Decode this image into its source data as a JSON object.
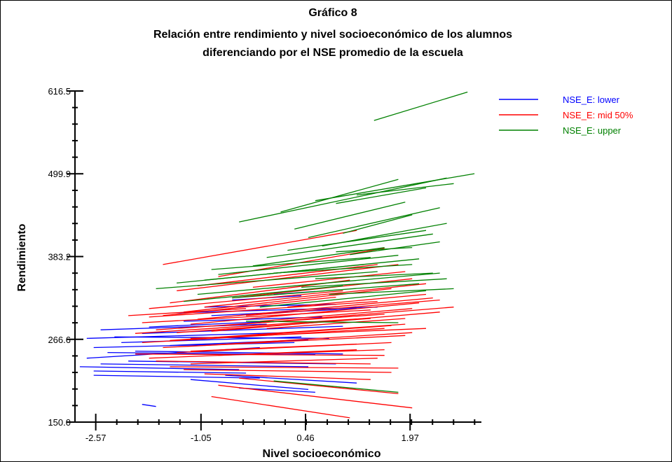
{
  "chart_data": {
    "type": "line",
    "title": "Gráfico 8",
    "subtitle_lines": [
      "Relación entre rendimiento y nivel socioeconómico de los alumnos",
      "diferenciando por el  NSE promedio de la escuela"
    ],
    "xlabel": "Nivel socioeconómico",
    "ylabel": "Rendimiento",
    "xlim": [
      -2.87,
      3.0
    ],
    "ylim": [
      150.0,
      616.5
    ],
    "xticks": [
      -2.57,
      -1.05,
      0.46,
      1.97
    ],
    "xtick_labels": [
      "-2.57",
      "-1.05",
      "0.46",
      "1.97"
    ],
    "yticks": [
      150.0,
      266.6,
      383.2,
      499.9,
      616.5
    ],
    "ytick_labels": [
      "150.0",
      "266.6",
      "383.2",
      "499.9",
      "616.5"
    ],
    "legend_position": "top-right",
    "grid": false,
    "series": [
      {
        "name": "NSE_E: lower",
        "color": "#0000ff",
        "segments": [
          [
            -2.6,
            255,
            0.3,
            262
          ],
          [
            -2.7,
            240,
            -0.2,
            255
          ],
          [
            -2.5,
            232,
            0.5,
            228
          ],
          [
            -2.8,
            228,
            -0.5,
            224
          ],
          [
            -2.3,
            270,
            0.8,
            268
          ],
          [
            -2.6,
            222,
            -0.4,
            219
          ],
          [
            -2.2,
            262,
            0.4,
            270
          ],
          [
            -2.4,
            248,
            0.6,
            245
          ],
          [
            -2.5,
            280,
            -0.1,
            288
          ],
          [
            -2.7,
            268,
            0.2,
            276
          ],
          [
            -2.1,
            236,
            0.9,
            232
          ],
          [
            -1.9,
            275,
            1.0,
            285
          ],
          [
            -1.3,
            292,
            0.7,
            298
          ],
          [
            -0.9,
            300,
            1.2,
            310
          ],
          [
            -1.8,
            284,
            0.0,
            292
          ],
          [
            -2.6,
            216,
            -0.2,
            212
          ],
          [
            -1.2,
            210,
            0.5,
            196
          ],
          [
            -0.5,
            198,
            0.6,
            192
          ],
          [
            -1.0,
            312,
            0.9,
            316
          ],
          [
            -1.5,
            258,
            0.5,
            266
          ],
          [
            -0.6,
            322,
            0.4,
            328
          ],
          [
            -1.9,
            175,
            -1.7,
            172
          ],
          [
            -0.7,
            216,
            1.2,
            205
          ],
          [
            -1.4,
            304,
            1.5,
            312
          ],
          [
            0.0,
            330,
            0.6,
            334
          ],
          [
            -2.0,
            250,
            1.0,
            246
          ]
        ]
      },
      {
        "name": "NSE_E: mid 50%",
        "color": "#ff0000",
        "segments": [
          [
            -1.6,
            372,
            1.2,
            420
          ],
          [
            -1.0,
            312,
            2.2,
            345
          ],
          [
            -0.8,
            355,
            1.6,
            395
          ],
          [
            -1.4,
            335,
            1.8,
            372
          ],
          [
            -1.2,
            288,
            2.1,
            318
          ],
          [
            -1.8,
            298,
            1.5,
            320
          ],
          [
            -1.5,
            265,
            1.9,
            288
          ],
          [
            -1.7,
            280,
            1.6,
            302
          ],
          [
            -0.9,
            278,
            2.4,
            305
          ],
          [
            -1.3,
            305,
            1.7,
            338
          ],
          [
            -0.6,
            325,
            2.0,
            352
          ],
          [
            -1.1,
            295,
            2.3,
            325
          ],
          [
            -1.9,
            290,
            1.4,
            308
          ],
          [
            -2.0,
            275,
            1.3,
            296
          ],
          [
            -1.6,
            255,
            1.9,
            272
          ],
          [
            -1.4,
            248,
            1.7,
            262
          ],
          [
            -1.8,
            240,
            1.2,
            252
          ],
          [
            -1.2,
            232,
            1.5,
            240
          ],
          [
            -1.5,
            228,
            1.8,
            226
          ],
          [
            -2.0,
            246,
            1.6,
            244
          ],
          [
            -1.7,
            236,
            1.4,
            232
          ],
          [
            -1.0,
            218,
            1.4,
            210
          ],
          [
            -1.3,
            224,
            1.7,
            220
          ],
          [
            -0.8,
            202,
            2.0,
            170
          ],
          [
            -0.9,
            186,
            1.1,
            156
          ],
          [
            -0.5,
            212,
            1.8,
            190
          ],
          [
            -1.2,
            268,
            2.2,
            282
          ],
          [
            -0.7,
            286,
            2.6,
            312
          ],
          [
            -1.8,
            310,
            1.0,
            335
          ],
          [
            -0.3,
            340,
            1.9,
            362
          ],
          [
            -1.1,
            342,
            1.5,
            372
          ],
          [
            -1.9,
            262,
            1.6,
            282
          ],
          [
            -1.0,
            258,
            2.0,
            276
          ],
          [
            -0.4,
            300,
            2.4,
            322
          ],
          [
            -1.5,
            318,
            1.1,
            350
          ],
          [
            -2.1,
            300,
            -0.4,
            310
          ],
          [
            -1.4,
            276,
            1.4,
            296
          ],
          [
            -0.2,
            292,
            2.0,
            310
          ],
          [
            -1.6,
            300,
            0.9,
            326
          ],
          [
            -0.6,
            270,
            1.7,
            286
          ],
          [
            -1.2,
            250,
            1.2,
            260
          ],
          [
            -0.8,
            244,
            1.6,
            252
          ],
          [
            -0.1,
            282,
            1.9,
            296
          ],
          [
            0.2,
            312,
            2.2,
            330
          ]
        ]
      },
      {
        "name": "NSE_E: upper",
        "color": "#008000",
        "segments": [
          [
            1.45,
            575,
            2.8,
            615
          ],
          [
            -0.5,
            432,
            2.5,
            494
          ],
          [
            0.1,
            446,
            1.8,
            492
          ],
          [
            0.6,
            462,
            2.9,
            500
          ],
          [
            0.9,
            458,
            2.2,
            480
          ],
          [
            1.2,
            470,
            2.6,
            486
          ],
          [
            0.3,
            422,
            1.9,
            460
          ],
          [
            0.5,
            410,
            2.4,
            452
          ],
          [
            0.7,
            398,
            2.5,
            430
          ],
          [
            1.0,
            416,
            2.0,
            442
          ],
          [
            0.2,
            392,
            2.2,
            420
          ],
          [
            -0.1,
            382,
            2.3,
            415
          ],
          [
            -0.3,
            370,
            1.6,
            396
          ],
          [
            -0.8,
            358,
            1.8,
            385
          ],
          [
            -1.0,
            350,
            1.3,
            372
          ],
          [
            -1.4,
            346,
            2.1,
            380
          ],
          [
            -1.7,
            338,
            1.5,
            362
          ],
          [
            -1.1,
            330,
            2.4,
            360
          ],
          [
            0.0,
            360,
            2.0,
            372
          ],
          [
            -0.6,
            325,
            2.1,
            345
          ],
          [
            0.4,
            340,
            2.5,
            352
          ],
          [
            -0.2,
            312,
            2.2,
            335
          ],
          [
            0.8,
            330,
            2.6,
            338
          ],
          [
            -1.3,
            320,
            1.0,
            342
          ],
          [
            1.1,
            386,
            2.4,
            404
          ],
          [
            -0.9,
            365,
            1.4,
            382
          ],
          [
            0.6,
            352,
            2.3,
            360
          ],
          [
            -0.4,
            292,
            1.8,
            290
          ],
          [
            0.0,
            208,
            1.8,
            192
          ],
          [
            0.9,
            390,
            2.0,
            396
          ]
        ]
      }
    ]
  }
}
